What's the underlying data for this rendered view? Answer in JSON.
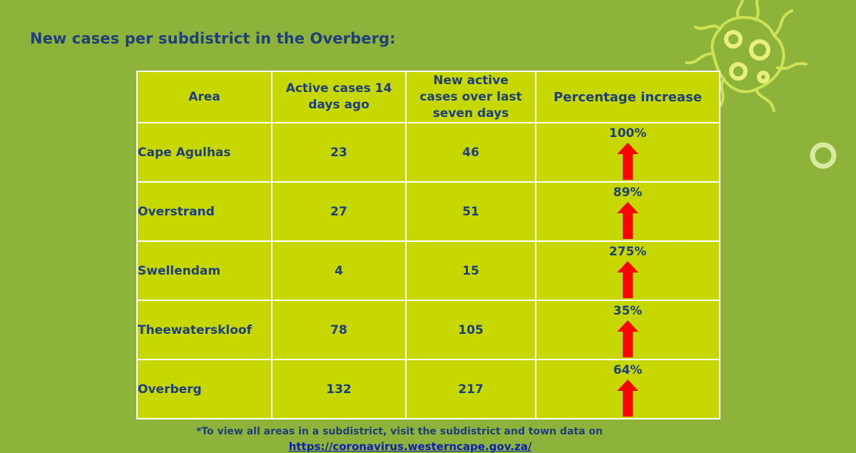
{
  "title": "New cases per subdistrict in the Overberg:",
  "table": {
    "headers": {
      "area": "Area",
      "active14": "Active cases 14 days ago",
      "new7": "New active cases over last seven days",
      "pct": "Percentage increase"
    },
    "rows": [
      {
        "area": "Cape Agulhas",
        "active14": "23",
        "new7": "46",
        "pct": "100%"
      },
      {
        "area": "Overstrand",
        "active14": "27",
        "new7": "51",
        "pct": "89%"
      },
      {
        "area": "Swellendam",
        "active14": "4",
        "new7": "15",
        "pct": "275%"
      },
      {
        "area": "Theewaterskloof",
        "active14": "78",
        "new7": "105",
        "pct": "35%"
      },
      {
        "area": "Overberg",
        "active14": "132",
        "new7": "217",
        "pct": "64%"
      }
    ]
  },
  "footnote": "*To view all areas in a subdistrict, visit the subdistrict and town data on",
  "link": "https://coronavirus.westerncape.gov.za/",
  "icons": {
    "trend": "red-up-arrow-icon",
    "virus": "virus-decoration-icon",
    "ring": "ring-decoration-icon"
  },
  "colors": {
    "background": "#8db33a",
    "table_fill": "#c7d800",
    "text": "#1f3f7a",
    "arrow": "#ff0000",
    "link": "#0b1fb5"
  }
}
